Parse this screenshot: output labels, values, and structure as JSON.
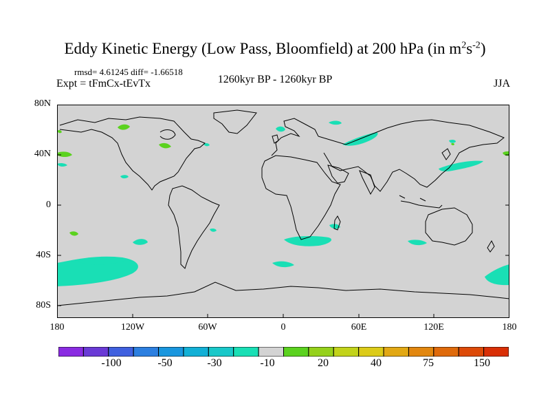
{
  "title": {
    "main": "Eddy Kinetic Energy (Low Pass, Bloomfield) at 200 hPa (in m",
    "sup1": "2",
    "mid": "s",
    "sup2": "-2",
    "close": ")"
  },
  "stats": "rmsd= 4.61245 diff= -1.66518",
  "experiment": "Expt = tFmCx-tEvTx",
  "period": "1260kyr BP - 1260kyr BP",
  "season": "JJA",
  "map": {
    "lat_labels": [
      "80N",
      "40N",
      "0",
      "40S",
      "80S"
    ],
    "lon_labels": [
      "180",
      "120W",
      "60W",
      "0",
      "60E",
      "120E",
      "180"
    ],
    "land_color": "#d3d3d3",
    "coast_color": "#000000"
  },
  "colorbar": {
    "colors": [
      "#8a2be2",
      "#6a3ad6",
      "#3f60df",
      "#2c7fe0",
      "#1996de",
      "#12b0d6",
      "#19c8c9",
      "#19dfb5",
      "#d3d3d3",
      "#5bd21f",
      "#95d11b",
      "#c2d31a",
      "#dccb18",
      "#e2a814",
      "#e2870f",
      "#df6a0b",
      "#dd4a08",
      "#d92f06"
    ],
    "labels": [
      "-100",
      "-50",
      "-30",
      "-10",
      "20",
      "40",
      "75",
      "150"
    ]
  }
}
